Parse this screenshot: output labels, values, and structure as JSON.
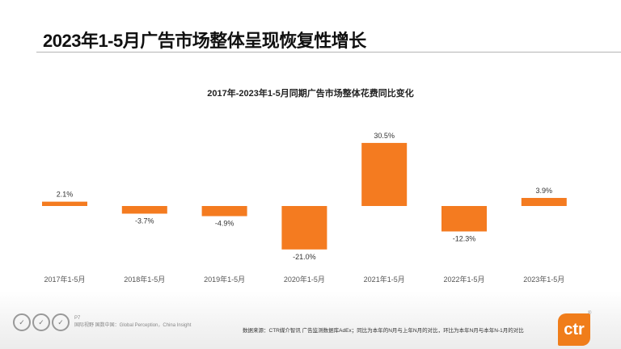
{
  "header": {
    "title": "2023年1-5月广告市场整体呈现恢复性增长"
  },
  "chart_data": {
    "type": "bar",
    "title": "2017年-2023年1-5月同期广告市场整体花费同比变化",
    "categories": [
      "2017年1-5月",
      "2018年1-5月",
      "2019年1-5月",
      "2020年1-5月",
      "2021年1-5月",
      "2022年1-5月",
      "2023年1-5月"
    ],
    "values": [
      2.1,
      -3.7,
      -4.9,
      -21.0,
      30.5,
      -12.3,
      3.9
    ],
    "data_labels": [
      "2.1%",
      "-3.7%",
      "-4.9%",
      "-21.0%",
      "30.5%",
      "-12.3%",
      "3.9%"
    ],
    "unit": "%",
    "bar_color": "#f47b20",
    "grid": false,
    "legend": "none",
    "xlabel": "",
    "ylabel": ""
  },
  "footer": {
    "page": "P7",
    "slogan": "国际视野 国数中国：Global Perception，China Insight",
    "source": "数据来源：CTR媒介智讯 广告监测数据库AdEx；同比为本年的N月与上年N月的对比，环比为本年N月与本年N-1月的对比",
    "logo_text": "ctr",
    "registered": "®",
    "badge_icons": [
      "certification-badge-icon",
      "certification-badge-icon",
      "certification-badge-icon"
    ]
  }
}
